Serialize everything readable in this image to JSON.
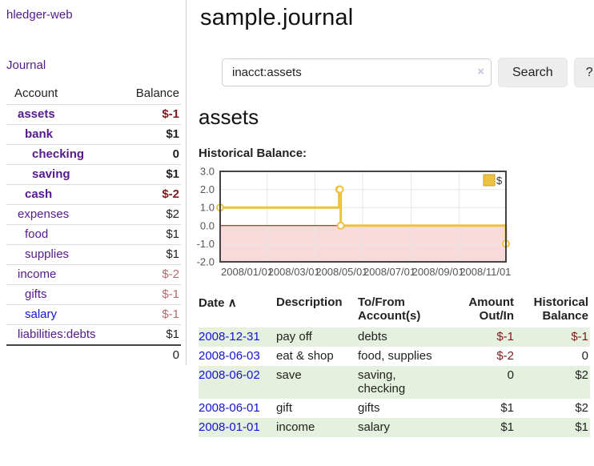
{
  "colors": {
    "link_purple": "#551a8b",
    "link_blue": "#1414d4",
    "negative_strong": "#7c1b1b",
    "negative_soft": "#b56d6d",
    "row_stripe_green": "#e6f0de",
    "chart_line": "#edc240",
    "chart_negative_region": "#f9dada",
    "chart_zero_line": "#a40000",
    "chart_border": "#444444"
  },
  "sidebar": {
    "app_title": "hledger-web",
    "journal_label": "Journal",
    "accounts_table": {
      "headers": {
        "account": "Account",
        "balance": "Balance"
      },
      "rows": [
        {
          "name": "assets",
          "balance": "$-1"
        },
        {
          "name": "bank",
          "balance": "$1"
        },
        {
          "name": "checking",
          "balance": "0"
        },
        {
          "name": "saving",
          "balance": "$1"
        },
        {
          "name": "cash",
          "balance": "$-2"
        },
        {
          "name": "expenses",
          "balance": "$2"
        },
        {
          "name": "food",
          "balance": "$1"
        },
        {
          "name": "supplies",
          "balance": "$1"
        },
        {
          "name": "income",
          "balance": "$-2"
        },
        {
          "name": "gifts",
          "balance": "$-1"
        },
        {
          "name": "salary",
          "balance": "$-1"
        },
        {
          "name": "liabilities:debts",
          "balance": "$1"
        }
      ],
      "total": "0"
    }
  },
  "main": {
    "title": "sample.journal",
    "search": {
      "value": "inacct:assets",
      "clear_icon": "×",
      "button_label": "Search",
      "help_label": "?"
    },
    "account_heading": "assets",
    "chart_title": "Historical Balance:"
  },
  "chart_data": {
    "type": "line",
    "step": true,
    "title": "Historical Balance",
    "xlabel": "",
    "ylabel": "",
    "ylim": [
      -2,
      3
    ],
    "xlim_days": [
      0,
      365
    ],
    "grid": true,
    "legend_position": "top-right",
    "series": [
      {
        "name": "$",
        "color": "#edc240",
        "dates": [
          "2008-01-01",
          "2008-06-01",
          "2008-06-02",
          "2008-06-03",
          "2008-12-31"
        ],
        "x_days": [
          0,
          152,
          153,
          154,
          365
        ],
        "values": [
          1,
          2,
          2,
          0,
          -1
        ]
      }
    ],
    "yticks": [
      3,
      2,
      1,
      0,
      -1,
      -2
    ],
    "xticks": [
      {
        "day": 0,
        "label": "2008/01/01"
      },
      {
        "day": 60,
        "label": "2008/03/01"
      },
      {
        "day": 121,
        "label": "2008/05/01"
      },
      {
        "day": 182,
        "label": "2008/07/01"
      },
      {
        "day": 244,
        "label": "2008/09/01"
      },
      {
        "day": 305,
        "label": "2008/11/01"
      }
    ],
    "negative_region_color": "#f9dada",
    "zero_line_color": "#a40000"
  },
  "register": {
    "headers": {
      "date": "Date",
      "sort_icon": "∧",
      "description": "Description",
      "accounts": "To/From Account(s)",
      "amount": "Amount Out/In",
      "balance": "Historical Balance"
    },
    "rows": [
      {
        "date": "2008-12-31",
        "description": "pay off",
        "accounts": "debts",
        "amount": "$-1",
        "balance": "$-1"
      },
      {
        "date": "2008-06-03",
        "description": "eat & shop",
        "accounts": "food, supplies",
        "amount": "$-2",
        "balance": "0"
      },
      {
        "date": "2008-06-02",
        "description": "save",
        "accounts": "saving, checking",
        "amount": "0",
        "balance": "$2"
      },
      {
        "date": "2008-06-01",
        "description": "gift",
        "accounts": "gifts",
        "amount": "$1",
        "balance": "$2"
      },
      {
        "date": "2008-01-01",
        "description": "income",
        "accounts": "salary",
        "amount": "$1",
        "balance": "$1"
      }
    ]
  }
}
